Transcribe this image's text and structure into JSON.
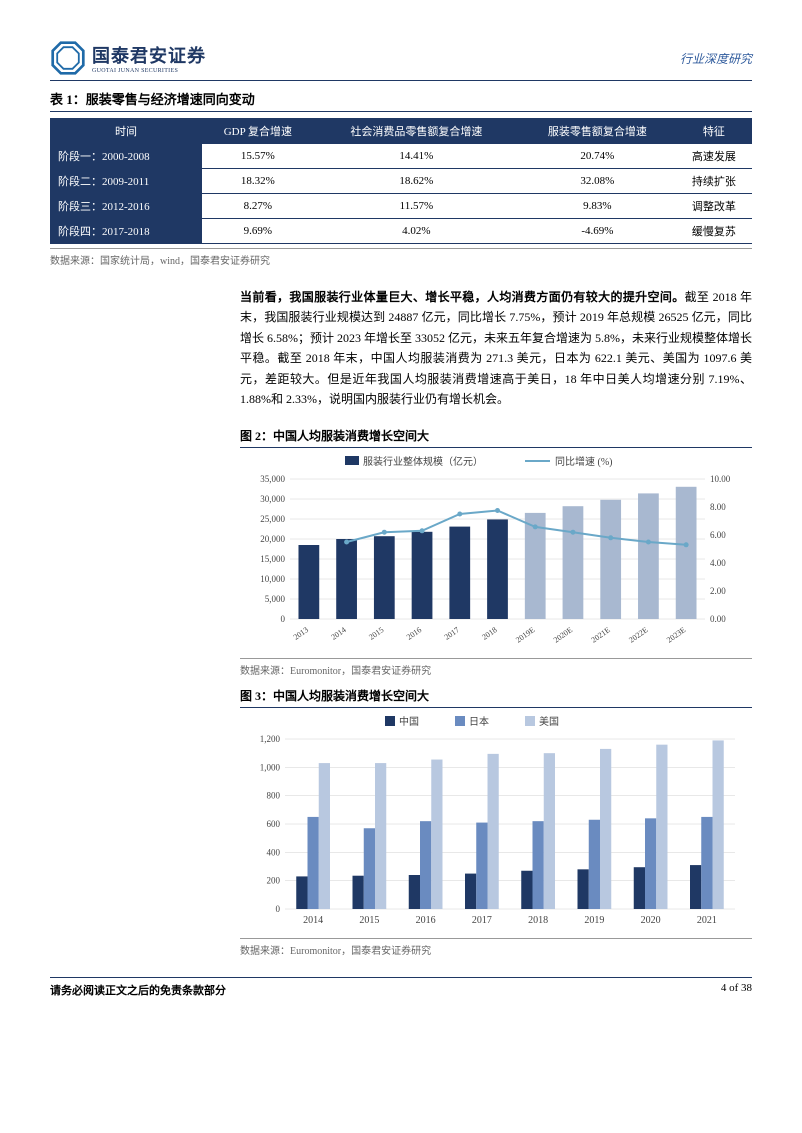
{
  "header": {
    "logo_cn": "国泰君安证券",
    "logo_en": "GUOTAI JUNAN SECURITIES",
    "right": "行业深度研究"
  },
  "table1": {
    "title": "表 1：服装零售与经济增速同向变动",
    "headers": [
      "时间",
      "GDP 复合增速",
      "社会消费品零售额复合增速",
      "服装零售额复合增速",
      "特征"
    ],
    "rows": [
      [
        "阶段一：2000-2008",
        "15.57%",
        "14.41%",
        "20.74%",
        "高速发展"
      ],
      [
        "阶段二：2009-2011",
        "18.32%",
        "18.62%",
        "32.08%",
        "持续扩张"
      ],
      [
        "阶段三：2012-2016",
        "8.27%",
        "11.57%",
        "9.83%",
        "调整改革"
      ],
      [
        "阶段四：2017-2018",
        "9.69%",
        "4.02%",
        "-4.69%",
        "缓慢复苏"
      ]
    ],
    "source": "数据来源：国家统计局，wind，国泰君安证券研究"
  },
  "body1": "当前看，我国服装行业体量巨大、增长平稳，人均消费方面仍有较大的提升空间。",
  "body2": "截至 2018 年末，我国服装行业规模达到 24887 亿元，同比增长 7.75%，预计 2019 年总规模 26525 亿元，同比增长 6.58%；预计 2023 年增长至 33052 亿元，未来五年复合增速为 5.8%，未来行业规模整体增长平稳。截至 2018 年末，中国人均服装消费为 271.3 美元，日本为 622.1 美元、美国为 1097.6 美元，差距较大。但是近年我国人均服装消费增速高于美日，18 年中日美人均增速分别 7.19%、1.88%和 2.33%，说明国内服装行业仍有增长机会。",
  "fig2": {
    "title": "图 2：中国人均服装消费增长空间大",
    "legend": [
      "服装行业整体规模（亿元）",
      "同比增速 (%)"
    ],
    "source": "数据来源：Euromonitor，国泰君安证券研究",
    "chart": {
      "type": "bar+line",
      "categories": [
        "2013",
        "2014",
        "2015",
        "2016",
        "2017",
        "2018",
        "2019E",
        "2020E",
        "2021E",
        "2022E",
        "2023E"
      ],
      "bars": [
        18500,
        20000,
        20700,
        21800,
        23100,
        24887,
        26525,
        28200,
        29800,
        31400,
        33052
      ],
      "line": [
        null,
        5.5,
        6.2,
        6.3,
        7.5,
        7.75,
        6.58,
        6.2,
        5.8,
        5.5,
        5.3
      ],
      "y1_ticks": [
        0,
        5000,
        10000,
        15000,
        20000,
        25000,
        30000,
        35000
      ],
      "y2_ticks": [
        0,
        2,
        4,
        6,
        8,
        10
      ],
      "bar_color": "#1f3864",
      "bar_color_e": "#a8b8d0",
      "line_color": "#6aa8c8",
      "grid_color": "#d0d0d0",
      "text_color": "#444"
    }
  },
  "fig3": {
    "title": "图 3：中国人均服装消费增长空间大",
    "legend": [
      "中国",
      "日本",
      "美国"
    ],
    "source": "数据来源：Euromonitor，国泰君安证券研究",
    "chart": {
      "type": "grouped-bar",
      "categories": [
        "2014",
        "2015",
        "2016",
        "2017",
        "2018",
        "2019",
        "2020",
        "2021"
      ],
      "series": {
        "china": [
          230,
          235,
          240,
          250,
          270,
          280,
          295,
          310
        ],
        "japan": [
          650,
          570,
          620,
          610,
          620,
          630,
          640,
          650
        ],
        "usa": [
          1030,
          1030,
          1055,
          1095,
          1100,
          1130,
          1160,
          1190
        ]
      },
      "y_ticks": [
        0,
        200,
        400,
        600,
        800,
        1000,
        1200
      ],
      "colors": {
        "china": "#1f3864",
        "japan": "#6a8bc0",
        "usa": "#b8c8e0"
      },
      "grid_color": "#d0d0d0",
      "text_color": "#444"
    }
  },
  "footer": {
    "left": "请务必阅读正文之后的免责条款部分",
    "right": "4 of 38"
  }
}
